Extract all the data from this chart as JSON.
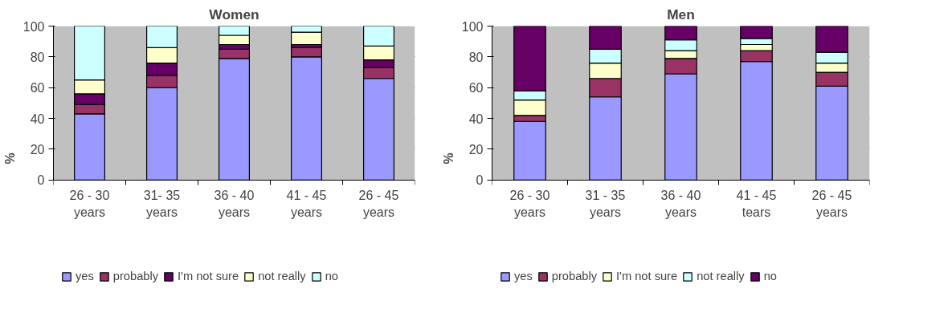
{
  "chart_data": [
    {
      "type": "bar",
      "title": "Women",
      "ylabel": "%",
      "stacked": true,
      "categories": [
        "26 - 30 years",
        "31- 35 years",
        "36 - 40 years",
        "41 - 45 years",
        "26 - 45 years"
      ],
      "ylim": [
        0,
        100
      ],
      "yticks": [
        0,
        20,
        40,
        60,
        80,
        100
      ],
      "grid": "y",
      "legend": "bottom",
      "series": [
        {
          "name": "yes",
          "color": "#9999ff",
          "values": [
            43,
            60,
            79,
            80,
            66
          ]
        },
        {
          "name": "probably",
          "color": "#993366",
          "values": [
            6,
            8,
            6,
            6,
            7
          ]
        },
        {
          "name": "I'm not sure",
          "color": "#660066",
          "values": [
            7,
            8,
            3,
            2,
            5
          ]
        },
        {
          "name": "not really",
          "color": "#ffffcc",
          "values": [
            9,
            10,
            6,
            8,
            9
          ]
        },
        {
          "name": "no",
          "color": "#ccffff",
          "values": [
            35,
            14,
            6,
            4,
            13
          ]
        }
      ]
    },
    {
      "type": "bar",
      "title": "Men",
      "ylabel": "%",
      "stacked": true,
      "categories": [
        "26 - 30 years",
        "31 - 35 years",
        "36 - 40 years",
        "41 - 45 tears",
        "26 - 45 years"
      ],
      "ylim": [
        0,
        100
      ],
      "yticks": [
        0,
        20,
        40,
        60,
        80,
        100
      ],
      "grid": "y",
      "legend": "bottom",
      "series": [
        {
          "name": "yes",
          "color": "#9999ff",
          "values": [
            38,
            54,
            69,
            77,
            61
          ]
        },
        {
          "name": "probably",
          "color": "#993366",
          "values": [
            4,
            12,
            10,
            7,
            9
          ]
        },
        {
          "name": "I'm not sure",
          "color": "#ffffcc",
          "values": [
            10,
            10,
            5,
            4,
            6
          ]
        },
        {
          "name": "not really",
          "color": "#ccffff",
          "values": [
            6,
            9,
            7,
            4,
            7
          ]
        },
        {
          "name": "no",
          "color": "#660066",
          "values": [
            42,
            15,
            9,
            8,
            17
          ]
        }
      ]
    }
  ]
}
